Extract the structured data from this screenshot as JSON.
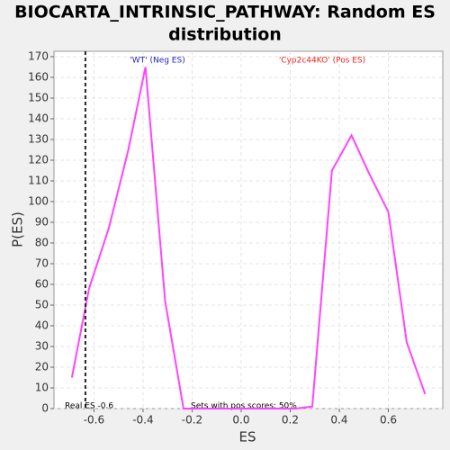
{
  "chart_data": {
    "type": "line",
    "title": "BIOCARTA_INTRINSIC_PATHWAY: Random ES distribution",
    "x_label": "ES",
    "y_label": "P(ES)",
    "x": [
      -0.69,
      -0.62,
      -0.54,
      -0.46,
      -0.39,
      -0.31,
      -0.235,
      0.22,
      0.29,
      0.37,
      0.45,
      0.52,
      0.6,
      0.675,
      0.75
    ],
    "values": [
      15,
      58,
      87,
      125,
      165,
      52,
      0,
      0,
      1,
      115,
      132,
      114,
      95,
      32,
      7
    ],
    "color": "#ff44ff",
    "xlim": [
      -0.763,
      0.822
    ],
    "ylim": [
      0,
      172.6
    ],
    "xticks": [
      -0.6,
      -0.4,
      -0.2,
      {
        "value": 0,
        "label": "0.0"
      },
      0.2,
      0.4,
      0.6
    ],
    "yticks": [
      0,
      10,
      20,
      30,
      40,
      50,
      60,
      70,
      80,
      90,
      100,
      110,
      120,
      130,
      140,
      150,
      160,
      170
    ],
    "grid": true,
    "real_es": -0.635,
    "annotations": {
      "neg": "'WT' (Neg ES)",
      "pos": "'Cyp2c44KO' (Pos ES)",
      "real": "Real ES -0.6",
      "sets": "Sets with pos scores: 50%"
    }
  }
}
